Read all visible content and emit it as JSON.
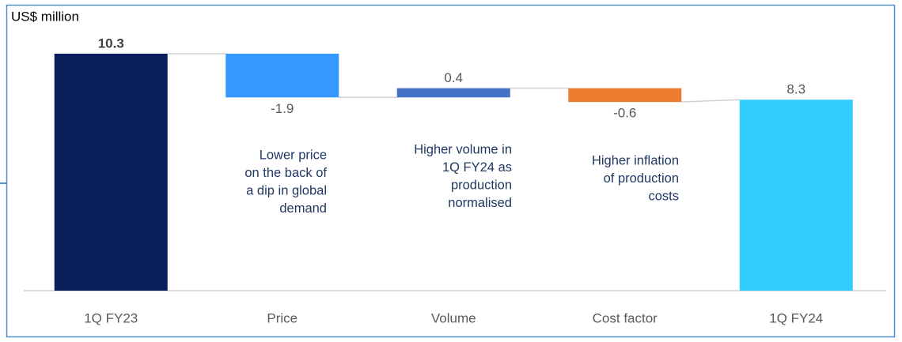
{
  "chart_data": {
    "type": "waterfall",
    "y_label": "US$ million",
    "categories": [
      "1Q FY23",
      "Price",
      "Volume",
      "Cost factor",
      "1Q FY24"
    ],
    "values": [
      10.3,
      -1.9,
      0.4,
      -0.6,
      8.3
    ],
    "totals": [
      true,
      false,
      false,
      false,
      true
    ],
    "colors": [
      "#0b1f5c",
      "#3399ff",
      "#4472c4",
      "#ed7d31",
      "#33ccff"
    ],
    "ylim": [
      0,
      11
    ],
    "annotations": [
      {
        "lines": [
          "Lower price",
          "on the back of",
          "a dip in global",
          "demand"
        ]
      },
      {
        "lines": [
          "Higher volume in",
          "1Q FY24 as",
          "production",
          "normalised"
        ]
      },
      {
        "lines": [
          "Higher inflation",
          "of production",
          "costs"
        ]
      }
    ]
  }
}
